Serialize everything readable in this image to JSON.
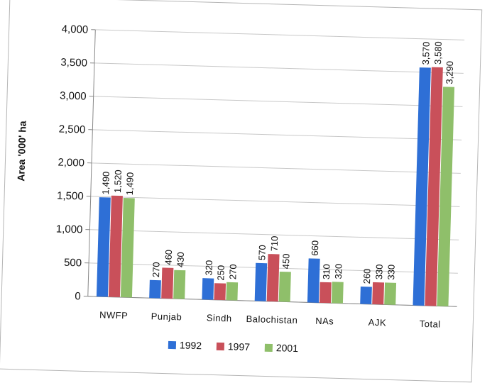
{
  "chart_data": {
    "type": "bar",
    "title": "",
    "xlabel": "",
    "ylabel": "Area '000' ha",
    "ylim": [
      0,
      4000
    ],
    "yticks": [
      "0",
      "500",
      "1,000",
      "1,500",
      "2,000",
      "2,500",
      "3,000",
      "3,500",
      "4,000"
    ],
    "ytick_values": [
      0,
      500,
      1000,
      1500,
      2000,
      2500,
      3000,
      3500,
      4000
    ],
    "categories": [
      "NWFP",
      "Punjab",
      "Sindh",
      "Balochistan",
      "NAs",
      "AJK",
      "Total"
    ],
    "series": [
      {
        "name": "1992",
        "color": "#2e6fd6",
        "values": [
          1490,
          270,
          320,
          570,
          660,
          260,
          3570
        ],
        "labels": [
          "1,490",
          "270",
          "320",
          "570",
          "660",
          "260",
          "3,570"
        ]
      },
      {
        "name": "1997",
        "color": "#c9505a",
        "values": [
          1520,
          460,
          250,
          710,
          310,
          330,
          3580
        ],
        "labels": [
          "1,520",
          "460",
          "250",
          "710",
          "310",
          "330",
          "3,580"
        ]
      },
      {
        "name": "2001",
        "color": "#8fbf6a",
        "values": [
          1490,
          430,
          270,
          450,
          320,
          330,
          3290
        ],
        "labels": [
          "1,490",
          "430",
          "270",
          "450",
          "320",
          "330",
          "3,290"
        ]
      }
    ],
    "grid": true,
    "legend": "bottom"
  }
}
